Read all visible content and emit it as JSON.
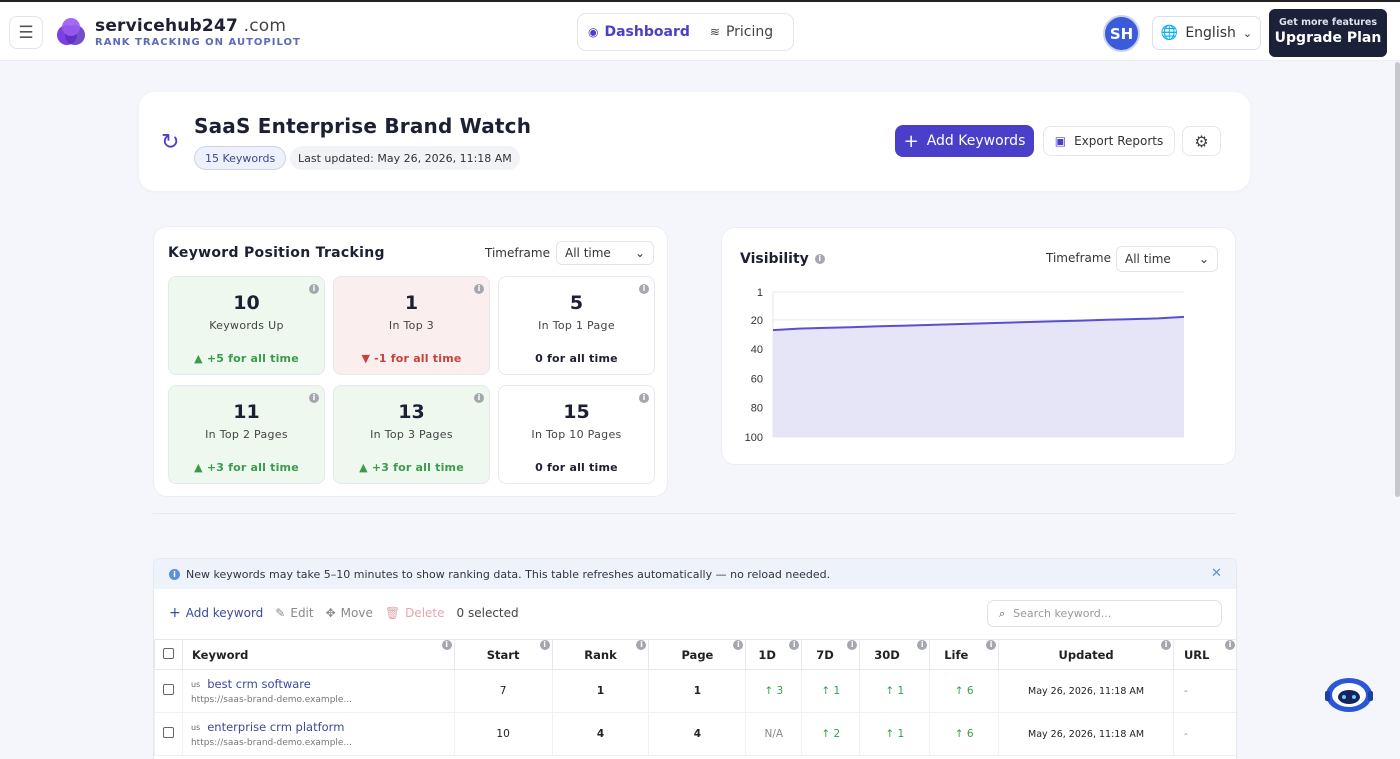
{
  "header": {
    "brand_name": "servicehub247",
    "brand_suffix": " .com",
    "brand_tagline": "RANK TRACKING ON AUTOPILOT",
    "nav": [
      {
        "label": "Dashboard",
        "icon": "dashboard-icon",
        "active": true
      },
      {
        "label": "Pricing",
        "icon": "layers-icon",
        "active": false
      }
    ],
    "avatar_initials": "SH",
    "language": "English",
    "upgrade_small": "Get more features",
    "upgrade_label": "Upgrade Plan"
  },
  "project": {
    "title": "SaaS Enterprise Brand Watch",
    "keyword_count": "15 Keywords",
    "last_updated": "Last updated: May 26, 2026, 11:18 AM",
    "add_keywords_label": "Add Keywords",
    "export_label": "Export Reports"
  },
  "tracking": {
    "title": "Keyword Position Tracking",
    "timeframe_label": "Timeframe",
    "timeframe_value": "All time",
    "stats": [
      {
        "value": "10",
        "label": "Keywords Up",
        "change": "▲ +5 for all time",
        "tone": "green",
        "dir": "up"
      },
      {
        "value": "1",
        "label": "In Top 3",
        "change": "▼ -1 for all time",
        "tone": "red",
        "dir": "down"
      },
      {
        "value": "5",
        "label": "In Top 1 Page",
        "change": "0 for all time",
        "tone": "white",
        "dir": "flat"
      },
      {
        "value": "11",
        "label": "In Top 2 Pages",
        "change": "▲ +3 for all time",
        "tone": "green",
        "dir": "up"
      },
      {
        "value": "13",
        "label": "In Top 3 Pages",
        "change": "▲ +3 for all time",
        "tone": "green",
        "dir": "up"
      },
      {
        "value": "15",
        "label": "In Top 10 Pages",
        "change": "0 for all time",
        "tone": "white",
        "dir": "flat"
      }
    ]
  },
  "visibility": {
    "title": "Visibility",
    "timeframe_label": "Timeframe",
    "timeframe_value": "All time"
  },
  "chart_data": {
    "type": "area",
    "title": "Visibility",
    "y_ticks": [
      "1",
      "20",
      "40",
      "60",
      "80",
      "100"
    ],
    "ylim": [
      1,
      100
    ],
    "y_reversed": true,
    "grid": true,
    "series": [
      {
        "color": "#5a4fcf",
        "values": [
          27,
          26,
          25.5,
          25,
          24.5,
          24,
          23.5,
          23,
          22.5,
          22,
          21.5,
          21,
          20.5,
          20,
          19.5,
          19,
          18
        ]
      }
    ]
  },
  "table": {
    "notice": "New keywords may take 5–10 minutes to show ranking data. This table refreshes automatically — no reload needed.",
    "toolbar": {
      "add": "Add keyword",
      "edit": "Edit",
      "move": "Move",
      "delete": "Delete",
      "selected": "0 selected"
    },
    "search_placeholder": "Search keyword...",
    "columns": [
      "Keyword",
      "Start",
      "Rank",
      "Page",
      "1D",
      "7D",
      "30D",
      "Life",
      "Updated",
      "URL"
    ],
    "rows": [
      {
        "country": "us",
        "keyword": "best crm software",
        "url": "https://saas-brand-demo.example...",
        "start": "7",
        "rank": "1",
        "page": "1",
        "d1": "↑ 3",
        "d7": "↑ 1",
        "d30": "↑ 1",
        "life": "↑ 6",
        "updated": "May 26, 2026, 11:18 AM",
        "link": "-"
      },
      {
        "country": "us",
        "keyword": "enterprise crm platform",
        "url": "https://saas-brand-demo.example...",
        "start": "10",
        "rank": "4",
        "page": "4",
        "d1": "N/A",
        "d7": "↑ 2",
        "d30": "↑ 1",
        "life": "↑ 6",
        "updated": "May 26, 2026, 11:18 AM",
        "link": "-"
      }
    ]
  }
}
